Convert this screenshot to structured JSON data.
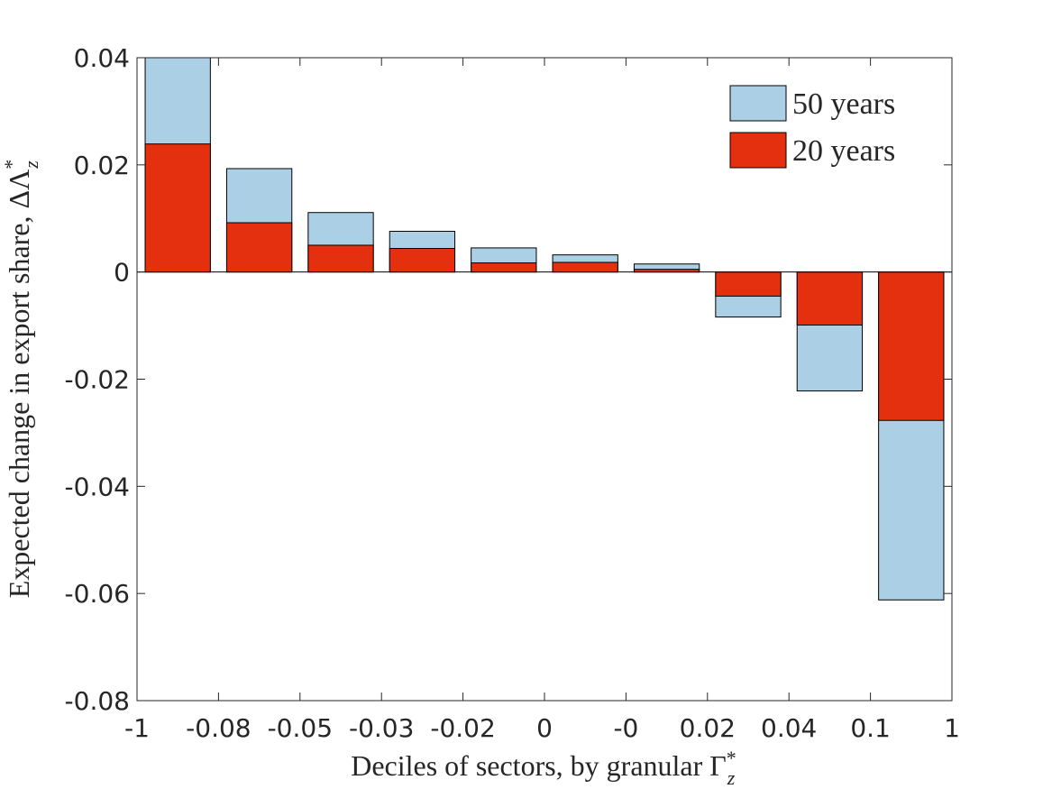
{
  "chart_data": {
    "type": "bar",
    "xlabel": {
      "text": "Deciles of sectors, by granular Γ",
      "sup": "*",
      "sub": "z"
    },
    "ylabel": {
      "text": "Expected change in export share, ΔΛ",
      "sup": "*",
      "sub": "z"
    },
    "categories": [
      null,
      null,
      null,
      null,
      null,
      null,
      null,
      null,
      null,
      null
    ],
    "edge_labels": [
      "-1",
      "-0.08",
      "-0.05",
      "-0.03",
      "-0.02",
      "0",
      "-0",
      "0.02",
      "0.04",
      "0.1",
      "1"
    ],
    "series": [
      {
        "name": "50 years",
        "color": "#abd0e6",
        "values": [
          0.045,
          0.0193,
          0.0111,
          0.0076,
          0.0045,
          0.0032,
          0.0015,
          -0.0084,
          -0.0222,
          -0.0612
        ]
      },
      {
        "name": "20 years",
        "color": "#e5300f",
        "values": [
          0.0239,
          0.0092,
          0.005,
          0.0044,
          0.0017,
          0.0018,
          0.0005,
          -0.0045,
          -0.0099,
          -0.0277
        ]
      }
    ],
    "ylim": [
      -0.08,
      0.04
    ],
    "yticks": [
      -0.08,
      -0.06,
      -0.04,
      -0.02,
      0,
      0.02,
      0.04
    ],
    "legend": "top-right"
  }
}
